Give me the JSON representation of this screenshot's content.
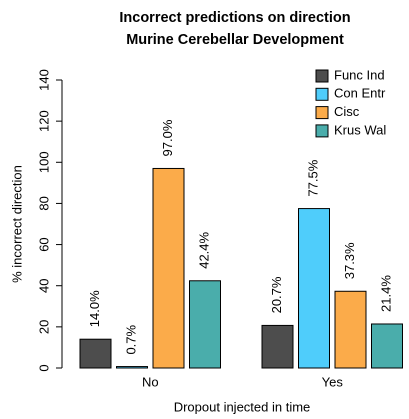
{
  "chart_data": {
    "type": "bar",
    "title": [
      "Incorrect predictions on direction",
      "Murine Cerebellar Development"
    ],
    "xlabel": "Dropout injected in time",
    "ylabel": "% incorrect direction",
    "categories": [
      "No",
      "Yes"
    ],
    "series": [
      {
        "name": "Func Ind",
        "color": "#4d4d4d",
        "values": [
          14.0,
          20.7
        ],
        "value_labels": [
          "14.0%",
          "20.7%"
        ]
      },
      {
        "name": "Con Entr",
        "color": "#4fcdfb",
        "values": [
          0.7,
          77.5
        ],
        "value_labels": [
          "0.7%",
          "77.5%"
        ]
      },
      {
        "name": "Cisc",
        "color": "#fbab4a",
        "values": [
          97.0,
          37.3
        ],
        "value_labels": [
          "97.0%",
          "37.3%"
        ]
      },
      {
        "name": "Krus Wal",
        "color": "#4aadab",
        "values": [
          42.4,
          21.4
        ],
        "value_labels": [
          "42.4%",
          "21.4%"
        ]
      }
    ],
    "ylim": [
      0,
      140
    ],
    "yticks": [
      0,
      20,
      40,
      60,
      80,
      100,
      120,
      140
    ],
    "legend": "top-right"
  }
}
